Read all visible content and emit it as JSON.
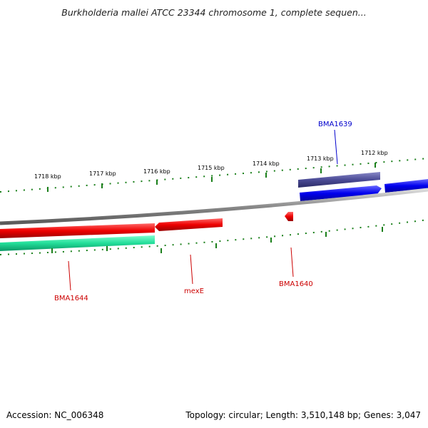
{
  "title": "Burkholderia mallei ATCC 23344 chromosome 1, complete sequen...",
  "ruler_labels": [
    "1718 kbp",
    "1717 kbp",
    "1716 kbp",
    "1715 kbp",
    "1714 kbp",
    "1713 kbp",
    "1712 kbp"
  ],
  "genes": [
    {
      "name": "BMA1639",
      "color": "#0000cc"
    },
    {
      "name": "mexE",
      "color": "#cc0000"
    },
    {
      "name": "BMA1640",
      "color": "#cc0000"
    },
    {
      "name": "BMA1644",
      "color": "#cc0000"
    }
  ],
  "colors": {
    "backbone": "#8a8a8a",
    "tick": "#1a7f1a",
    "forward_gene": "#0000ee",
    "forward_gene_dark": "#4b4b96",
    "reverse_gene": "#ee0000",
    "reverse_gene_teal": "#22dd99"
  },
  "footer": {
    "accession": "Accession: NC_006348",
    "stats": "Topology: circular; Length: 3,510,148 bp; Genes: 3,047"
  }
}
